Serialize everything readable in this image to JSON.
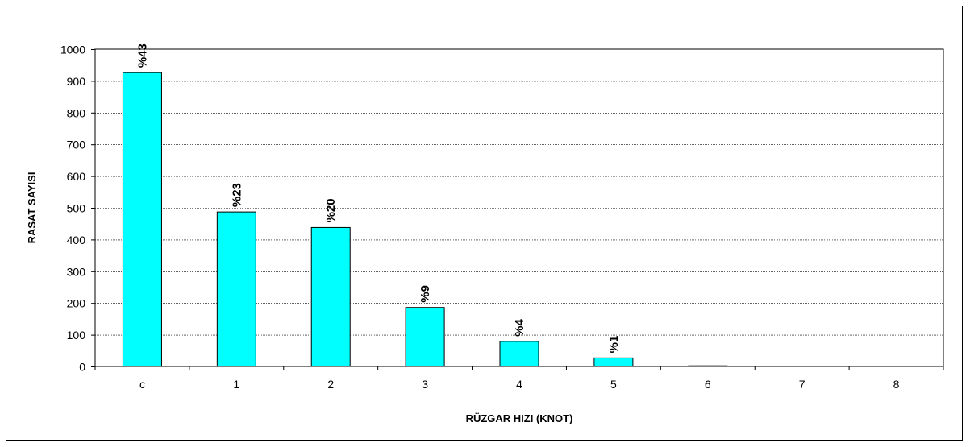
{
  "chart_data": {
    "type": "bar",
    "title": "",
    "xlabel": "RÜZGAR HIZI (KNOT)",
    "ylabel": "RASAT SAYISI",
    "categories": [
      "c",
      "1",
      "2",
      "3",
      "4",
      "5",
      "6",
      "7",
      "8"
    ],
    "values": [
      926,
      487,
      438,
      186,
      79,
      27,
      2,
      0,
      0
    ],
    "data_labels": [
      "%43",
      "%23",
      "%20",
      "%9",
      "%4",
      "%1",
      "",
      "",
      ""
    ],
    "yticks": [
      "0",
      "100",
      "200",
      "300",
      "400",
      "500",
      "600",
      "700",
      "800",
      "900",
      "1000"
    ],
    "ylim": [
      0,
      1000
    ],
    "grid": true,
    "legend": "none",
    "colors": {
      "bar_fill": "#00FFFF",
      "bar_stroke": "#000000",
      "grid": "#000000"
    }
  }
}
